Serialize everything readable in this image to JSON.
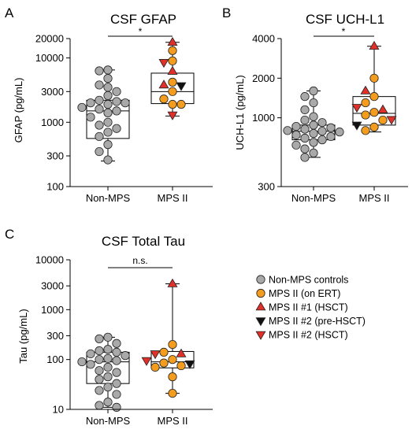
{
  "chart_data": [
    {
      "panel_letter": "A",
      "title": "CSF GFAP",
      "type": "box_scatter",
      "ylabel": "GFAP (pg/mL)",
      "yscale": "log",
      "ylim": [
        100,
        20000
      ],
      "yticks": [
        100,
        300,
        1000,
        3000,
        10000,
        20000
      ],
      "ytick_labels": [
        "100",
        "300",
        "1000",
        "3000",
        "10000",
        "20000"
      ],
      "categories": [
        "Non-MPS",
        "MPS II"
      ],
      "boxes": [
        {
          "category": "Non-MPS",
          "min": 250,
          "q1": 560,
          "median": 1500,
          "q3": 2200,
          "max": 6500
        },
        {
          "category": "MPS II",
          "min": 1250,
          "q1": 1950,
          "median": 3000,
          "q3": 5800,
          "max": 17500
        }
      ],
      "points": [
        {
          "category": "Non-MPS",
          "group": "Non-MPS controls",
          "values": [
            6500,
            6300,
            4800,
            3800,
            3500,
            3000,
            2600,
            2200,
            2100,
            2000,
            2000,
            1900,
            1700,
            1600,
            1500,
            1400,
            1200,
            1000,
            900,
            800,
            700,
            600,
            450,
            350,
            260
          ]
        },
        {
          "category": "MPS II",
          "group": "MPS II (on ERT)",
          "values": [
            13000,
            9000,
            4200,
            3000,
            2300,
            1900,
            1900
          ]
        },
        {
          "category": "MPS II",
          "group": "MPS II #1 (HSCT)",
          "values": [
            17500,
            6200,
            3800
          ]
        },
        {
          "category": "MPS II",
          "group": "MPS II #2 (pre-HSCT)",
          "values": [
            3700
          ]
        },
        {
          "category": "MPS II",
          "group": "MPS II #2 (HSCT)",
          "values": [
            8500,
            1300
          ]
        }
      ],
      "significance": "*"
    },
    {
      "panel_letter": "B",
      "title": "CSF UCH-L1",
      "type": "box_scatter",
      "ylabel": "UCH-L1 (pg/mL)",
      "yscale": "log",
      "ylim": [
        300,
        4000
      ],
      "yticks": [
        300,
        1000,
        2000,
        4000
      ],
      "ytick_labels": [
        "300",
        "1000",
        "2000",
        "4000"
      ],
      "categories": [
        "Non-MPS",
        "MPS II"
      ],
      "boxes": [
        {
          "category": "Non-MPS",
          "min": 500,
          "q1": 680,
          "median": 790,
          "q3": 880,
          "max": 1600
        },
        {
          "category": "MPS II",
          "min": 780,
          "q1": 880,
          "median": 1080,
          "q3": 1450,
          "max": 3500
        }
      ],
      "points": [
        {
          "category": "Non-MPS",
          "group": "Non-MPS controls",
          "values": [
            1600,
            1450,
            1300,
            1150,
            1020,
            960,
            920,
            880,
            860,
            840,
            820,
            800,
            790,
            780,
            760,
            740,
            720,
            700,
            680,
            650,
            620,
            580,
            540,
            500
          ]
        },
        {
          "category": "MPS II",
          "group": "MPS II (on ERT)",
          "values": [
            2000,
            1450,
            1300,
            1100,
            1050,
            960,
            850,
            800
          ]
        },
        {
          "category": "MPS II",
          "group": "MPS II #1 (HSCT)",
          "values": [
            3500,
            1600,
            1150
          ]
        },
        {
          "category": "MPS II",
          "group": "MPS II #2 (pre-HSCT)",
          "values": [
            880
          ]
        },
        {
          "category": "MPS II",
          "group": "MPS II #2 (HSCT)",
          "values": [
            1200,
            970
          ]
        }
      ],
      "significance": "*"
    },
    {
      "panel_letter": "C",
      "title": "CSF Total Tau",
      "type": "box_scatter",
      "ylabel": "Tau (pg/mL)",
      "yscale": "log",
      "ylim": [
        10,
        10000
      ],
      "yticks": [
        10,
        100,
        300,
        1000,
        3000,
        10000
      ],
      "ytick_labels": [
        "10",
        "100",
        "300",
        "1000",
        "3000",
        "10000"
      ],
      "categories": [
        "Non-MPS",
        "MPS II"
      ],
      "boxes": [
        {
          "category": "Non-MPS",
          "min": 11,
          "q1": 33,
          "median": 90,
          "q3": 140,
          "max": 280
        },
        {
          "category": "MPS II",
          "min": 21,
          "q1": 68,
          "median": 90,
          "q3": 145,
          "max": 3300
        }
      ],
      "points": [
        {
          "category": "Non-MPS",
          "group": "Non-MPS controls",
          "values": [
            280,
            260,
            210,
            160,
            150,
            140,
            130,
            120,
            105,
            100,
            95,
            90,
            80,
            70,
            60,
            55,
            45,
            40,
            33,
            28,
            24,
            20,
            14,
            12,
            11
          ]
        },
        {
          "category": "MPS II",
          "group": "MPS II (on ERT)",
          "values": [
            200,
            140,
            100,
            85,
            75,
            70,
            45,
            21
          ]
        },
        {
          "category": "MPS II",
          "group": "MPS II #1 (HSCT)",
          "values": [
            3300,
            130
          ]
        },
        {
          "category": "MPS II",
          "group": "MPS II #2 (pre-HSCT)",
          "values": [
            82
          ]
        },
        {
          "category": "MPS II",
          "group": "MPS II #2 (HSCT)",
          "values": [
            130,
            95
          ]
        }
      ],
      "significance": "n.s."
    }
  ],
  "legend": {
    "placement": "right of panel C",
    "items": [
      {
        "label": "Non-MPS controls",
        "marker": "circle",
        "color": "#a9a9a9"
      },
      {
        "label": "MPS II (on ERT)",
        "marker": "circle",
        "color": "#f39c1d"
      },
      {
        "label": "MPS II #1 (HSCT)",
        "marker": "triangle-up",
        "color": "#e0302a"
      },
      {
        "label": "MPS II #2 (pre-HSCT)",
        "marker": "triangle-down",
        "color": "#111111"
      },
      {
        "label": "MPS II #2 (HSCT)",
        "marker": "triangle-down",
        "color": "#e0302a"
      }
    ]
  }
}
